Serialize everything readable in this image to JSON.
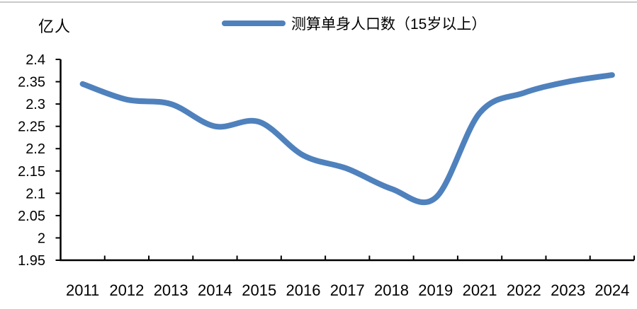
{
  "unit_label": "亿人",
  "legend": {
    "series_label": "测算单身人口数（15岁以上）"
  },
  "colors": {
    "line": "#4F81BD",
    "axis": "#000000",
    "text": "#000000",
    "background": "#FFFFFF"
  },
  "chart_data": {
    "type": "line",
    "title": "",
    "unit": "亿人",
    "categories": [
      "2011",
      "2012",
      "2013",
      "2014",
      "2015",
      "2016",
      "2017",
      "2018",
      "2019",
      "2021",
      "2022",
      "2023",
      "2024"
    ],
    "series": [
      {
        "name": "测算单身人口数（15岁以上）",
        "values": [
          2.345,
          2.31,
          2.3,
          2.25,
          2.26,
          2.185,
          2.155,
          2.11,
          2.09,
          2.28,
          2.325,
          2.35,
          2.365
        ]
      }
    ],
    "xlabel": "",
    "ylabel": "亿人",
    "ylim": [
      1.95,
      2.4
    ],
    "ytick_step": 0.05,
    "ytick_labels": [
      "2.4",
      "2.35",
      "2.3",
      "2.25",
      "2.2",
      "2.15",
      "2.1",
      "2.05",
      "2",
      "1.95"
    ],
    "smooth": true,
    "grid": false,
    "legend_position": "top-center"
  }
}
